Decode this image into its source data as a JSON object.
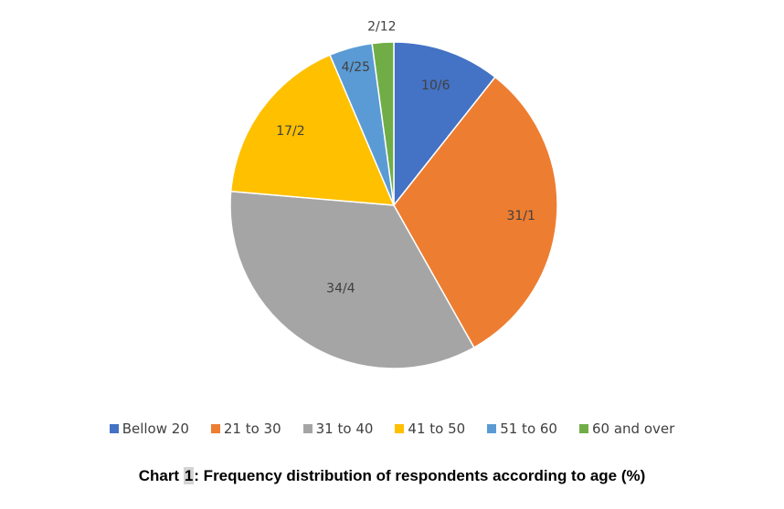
{
  "chart_data": {
    "type": "pie",
    "categories": [
      "Bellow 20",
      "21 to 30",
      "31 to 40",
      "41 to 50",
      "51 to 60",
      "60 and over"
    ],
    "values": [
      10.6,
      31.1,
      34.4,
      17.2,
      4.25,
      2.12
    ],
    "data_labels": [
      "10/6",
      "31/1",
      "34/4",
      "17/2",
      "4/25",
      "2/12"
    ],
    "colors": [
      "#4472C4",
      "#ED7D31",
      "#A5A5A5",
      "#FFC000",
      "#5B9BD5",
      "#70AD47"
    ],
    "start_angle": "12 o'clock",
    "direction": "clockwise",
    "legend_position": "bottom"
  },
  "caption": {
    "prefix": "Chart ",
    "number": "1",
    "text": ":  Frequency distribution of respondents according to age (%)"
  }
}
